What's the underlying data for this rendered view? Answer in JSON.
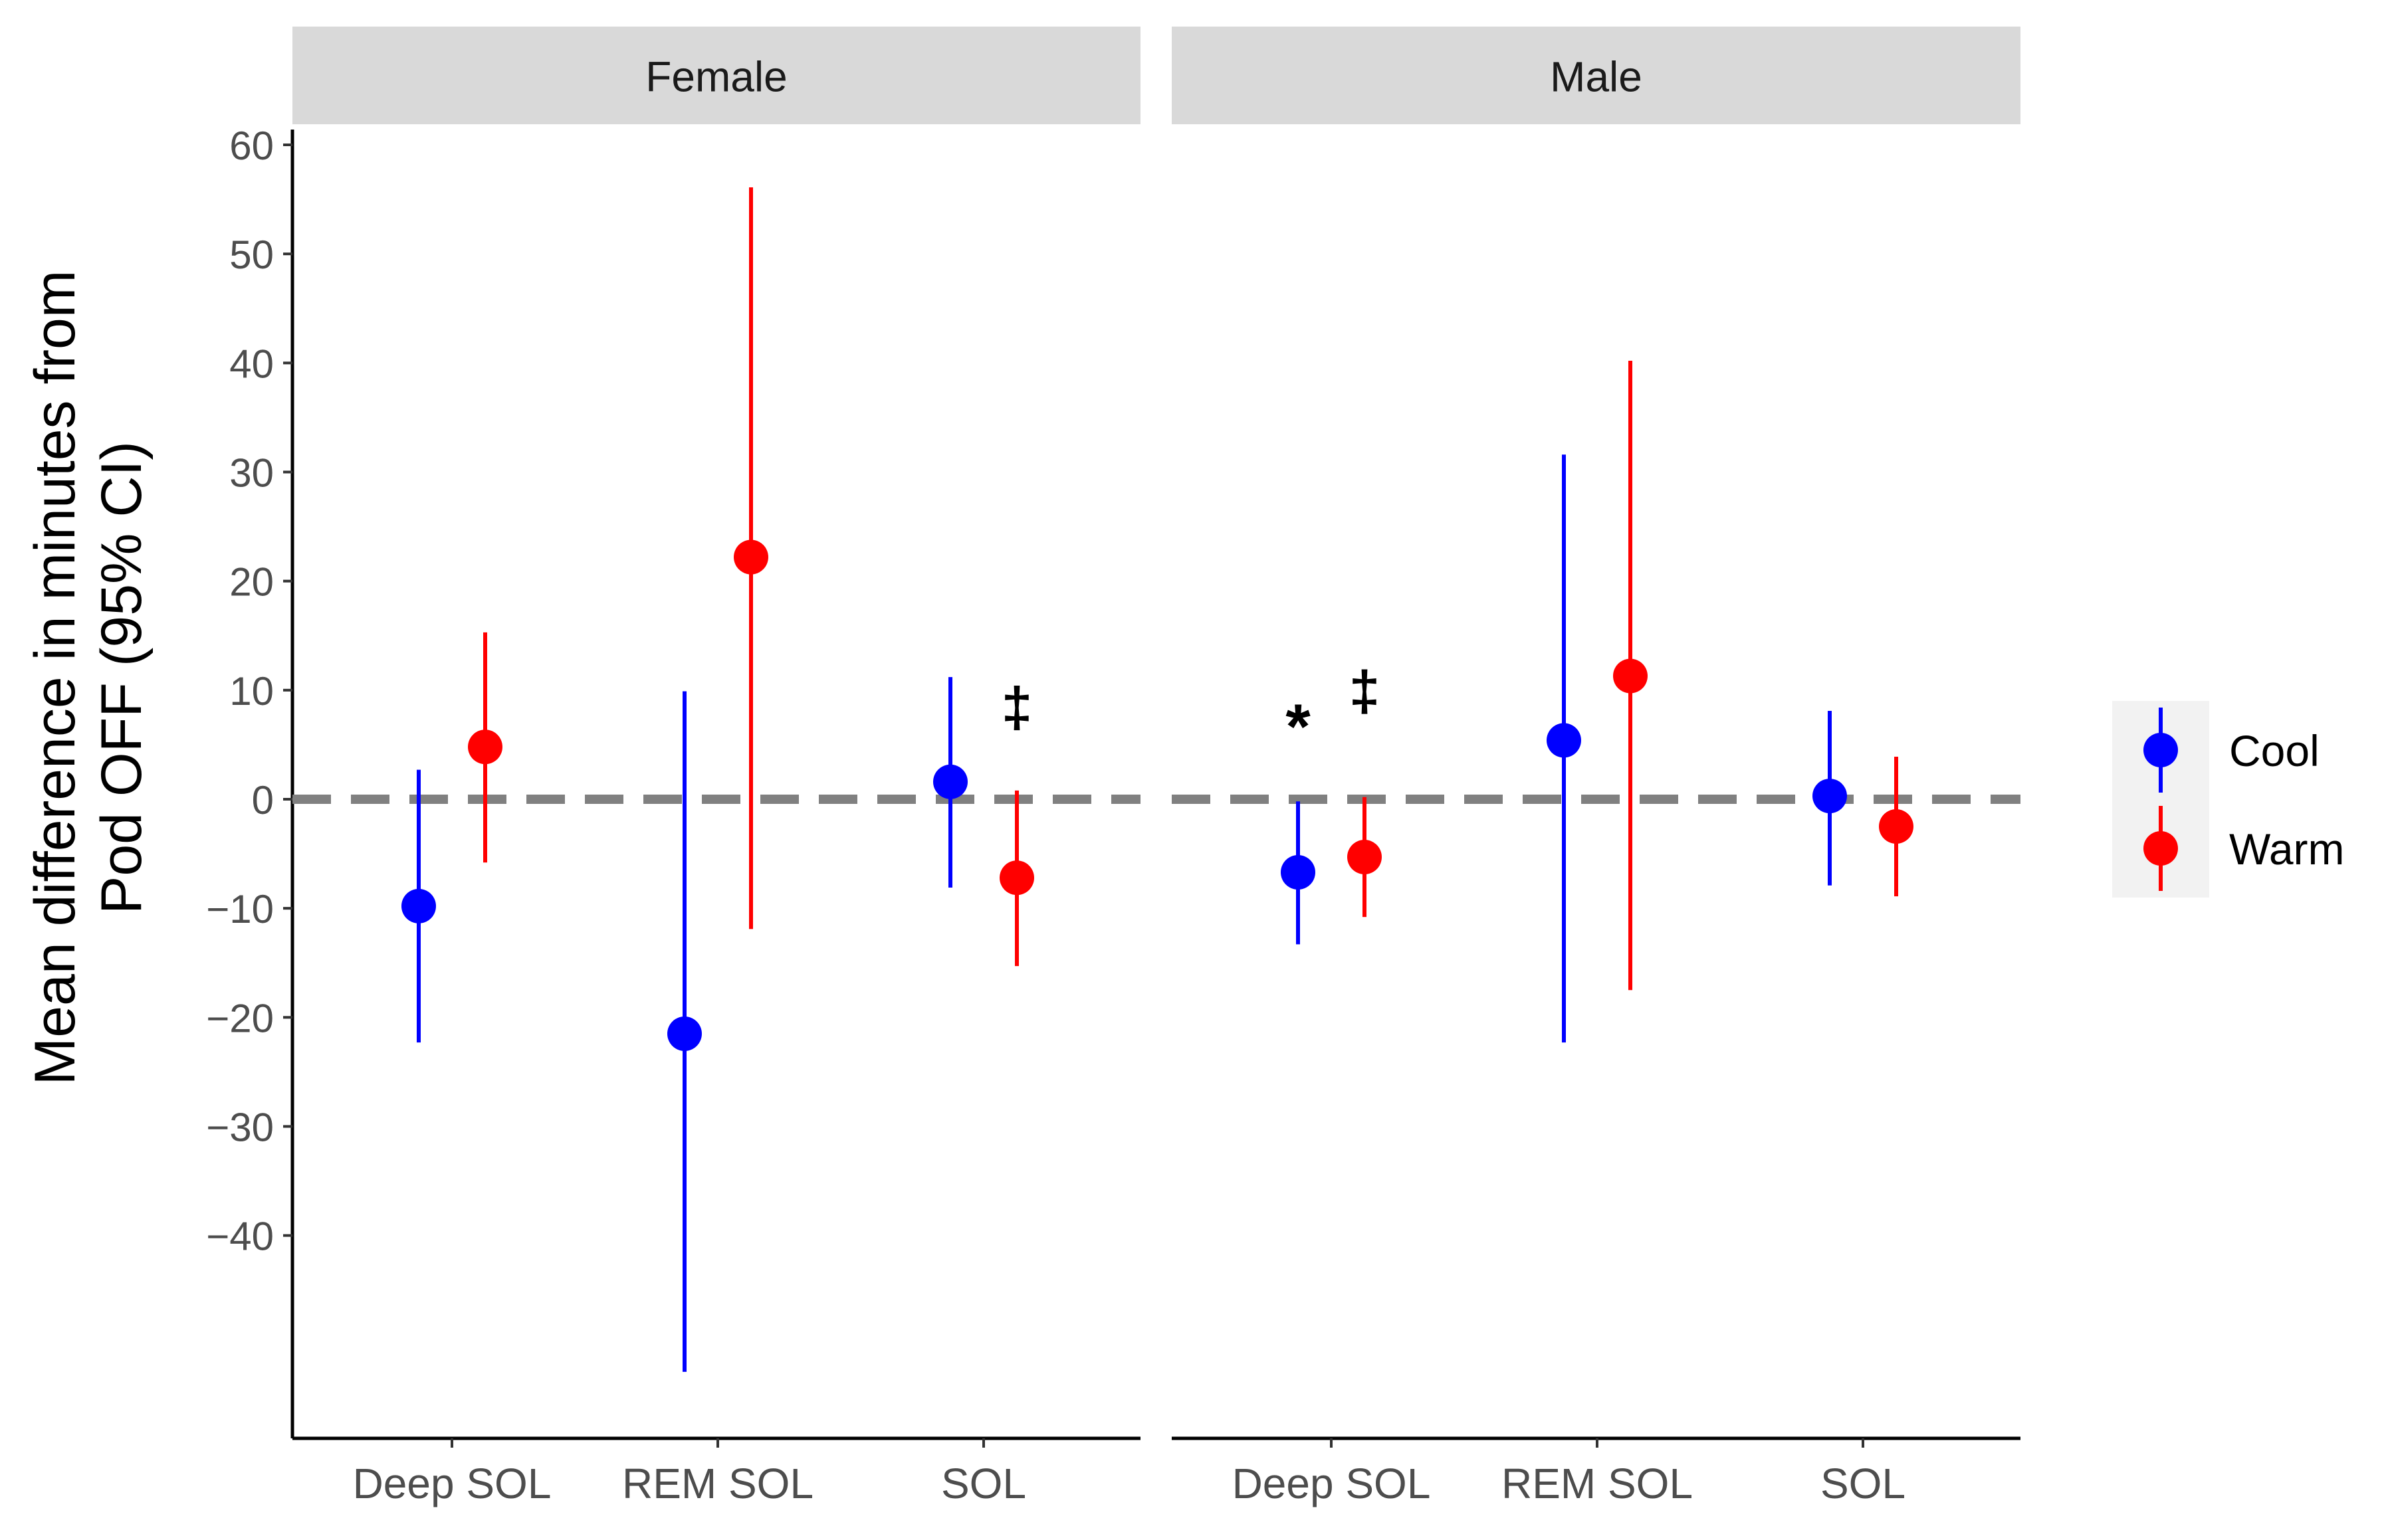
{
  "chart_data": {
    "type": "scatter",
    "subtype": "point-range (mean with 95% CI), faceted",
    "ylabel_line1": "Mean difference in minutes from",
    "ylabel_line2": "Pod OFF (95% CI)",
    "xlabel": "",
    "ylim": [
      -57,
      61
    ],
    "yticks": [
      60,
      50,
      40,
      30,
      20,
      10,
      0,
      -10,
      -20,
      -30,
      -40
    ],
    "ytick_labels": [
      "60",
      "50",
      "40",
      "30",
      "20",
      "10",
      "0",
      "−10",
      "−20",
      "−30",
      "−40"
    ],
    "reference_line": {
      "y": 0,
      "style": "dashed",
      "color": "#808080"
    },
    "grid": false,
    "legend": {
      "position": "right",
      "entries": [
        {
          "name": "Cool",
          "color": "#0000ff"
        },
        {
          "name": "Warm",
          "color": "#ff0000"
        }
      ]
    },
    "categories": [
      "Deep SOL",
      "REM SOL",
      "SOL"
    ],
    "facets": [
      {
        "label": "Female",
        "series": [
          {
            "name": "Cool",
            "color": "#0000ff",
            "points": [
              {
                "x": "Deep SOL",
                "y": -9.8,
                "lower": -22.3,
                "upper": 2.7
              },
              {
                "x": "REM SOL",
                "y": -21.5,
                "lower": -52.5,
                "upper": 9.9
              },
              {
                "x": "SOL",
                "y": 1.6,
                "lower": -8.1,
                "upper": 11.2
              }
            ]
          },
          {
            "name": "Warm",
            "color": "#ff0000",
            "points": [
              {
                "x": "Deep SOL",
                "y": 4.8,
                "lower": -5.8,
                "upper": 15.3
              },
              {
                "x": "REM SOL",
                "y": 22.2,
                "lower": -11.9,
                "upper": 56.1
              },
              {
                "x": "SOL",
                "y": -7.2,
                "lower": -15.3,
                "upper": 0.8
              }
            ]
          }
        ],
        "annotations": [
          {
            "text": "‡",
            "x": "SOL",
            "series": "Warm",
            "y": 8.5
          }
        ]
      },
      {
        "label": "Male",
        "series": [
          {
            "name": "Cool",
            "color": "#0000ff",
            "points": [
              {
                "x": "Deep SOL",
                "y": -6.7,
                "lower": -13.3,
                "upper": -0.2
              },
              {
                "x": "REM SOL",
                "y": 5.4,
                "lower": -22.3,
                "upper": 31.6
              },
              {
                "x": "SOL",
                "y": 0.3,
                "lower": -7.9,
                "upper": 8.1
              }
            ]
          },
          {
            "name": "Warm",
            "color": "#ff0000",
            "points": [
              {
                "x": "Deep SOL",
                "y": -5.3,
                "lower": -10.8,
                "upper": 0.2
              },
              {
                "x": "REM SOL",
                "y": 11.3,
                "lower": -17.5,
                "upper": 40.2
              },
              {
                "x": "SOL",
                "y": -2.5,
                "lower": -8.9,
                "upper": 3.9
              }
            ]
          }
        ],
        "annotations": [
          {
            "text": "*",
            "x": "Deep SOL",
            "series": "Cool",
            "y": 8.0
          },
          {
            "text": "‡",
            "x": "Deep SOL",
            "series": "Warm",
            "y": 10.0
          }
        ]
      }
    ]
  }
}
